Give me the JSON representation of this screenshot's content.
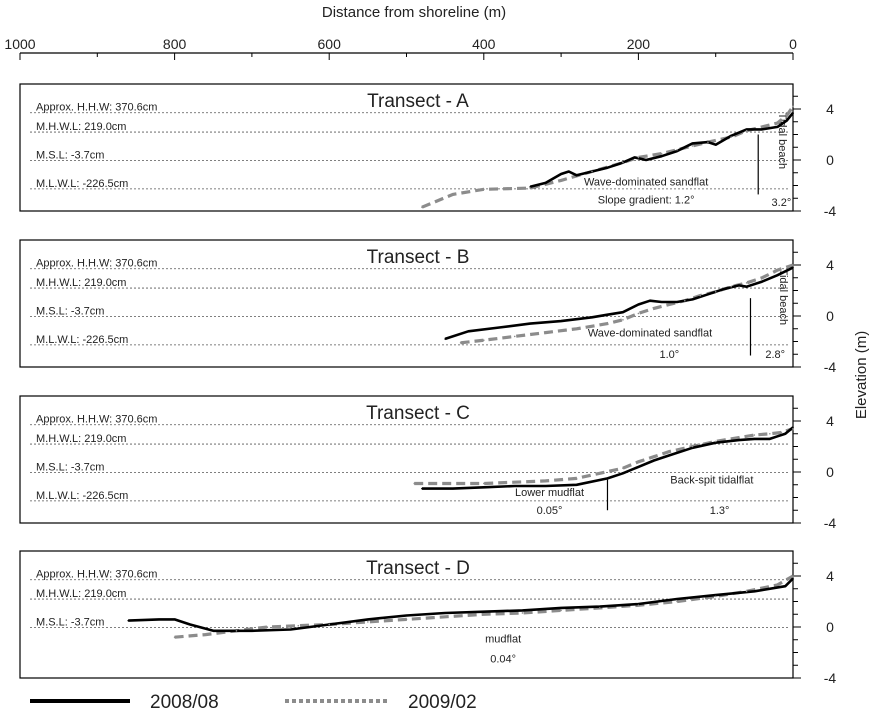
{
  "chart_data": {
    "type": "line",
    "xlabel": "Distance from shoreline (m)",
    "ylabel": "Elevation (m)",
    "x_ticks": [
      1000,
      800,
      600,
      400,
      200,
      0
    ],
    "x_range": [
      1000,
      0
    ],
    "y_range": [
      -4,
      4
    ],
    "y_ticks": [
      4,
      0,
      -4
    ],
    "series_names": [
      "2008/08",
      "2009/02"
    ],
    "colors": {
      "s2008": "#000000",
      "s2009": "#8c8c8c",
      "ref": "#555555"
    },
    "panels": [
      {
        "title": "Transect - A",
        "ref_lines": [
          {
            "label": "Approx. H.H.W: 370.6cm",
            "y": 3.706
          },
          {
            "label": "M.H.W.L: 219.0cm",
            "y": 2.19
          },
          {
            "label": "M.S.L: -3.7cm",
            "y": -0.037
          },
          {
            "label": "M.L.W.L: -226.5cm",
            "y": -2.265
          }
        ],
        "annotations": [
          {
            "text": "Wave-dominated sandflat",
            "x": 190,
            "y": -2.0
          },
          {
            "text": "Slope gradient: 1.2°",
            "x": 190,
            "y": -3.4
          },
          {
            "text": "3.2°",
            "x": 15,
            "y": -3.6
          },
          {
            "text": "Tidal beach",
            "x": 18,
            "y": 1.5,
            "vertical": true
          }
        ],
        "divider": {
          "x": 45,
          "y_top": 2.0,
          "y_bottom": -2.7
        },
        "s2008": [
          [
            340,
            -2.1
          ],
          [
            320,
            -1.8
          ],
          [
            300,
            -1.1
          ],
          [
            290,
            -0.9
          ],
          [
            280,
            -1.2
          ],
          [
            260,
            -0.9
          ],
          [
            240,
            -0.6
          ],
          [
            220,
            -0.2
          ],
          [
            205,
            0.2
          ],
          [
            190,
            0.0
          ],
          [
            170,
            0.3
          ],
          [
            150,
            0.7
          ],
          [
            130,
            1.3
          ],
          [
            110,
            1.4
          ],
          [
            100,
            1.2
          ],
          [
            80,
            1.9
          ],
          [
            60,
            2.4
          ],
          [
            40,
            2.4
          ],
          [
            20,
            2.6
          ],
          [
            8,
            3.1
          ],
          [
            0,
            3.7
          ]
        ],
        "s2009": [
          [
            480,
            -3.7
          ],
          [
            440,
            -2.7
          ],
          [
            400,
            -2.3
          ],
          [
            340,
            -2.2
          ],
          [
            300,
            -1.6
          ],
          [
            260,
            -0.9
          ],
          [
            220,
            -0.2
          ],
          [
            200,
            0.2
          ],
          [
            170,
            0.5
          ],
          [
            150,
            0.8
          ],
          [
            130,
            1.1
          ],
          [
            110,
            1.4
          ],
          [
            80,
            1.8
          ],
          [
            60,
            2.3
          ],
          [
            40,
            2.6
          ],
          [
            20,
            2.9
          ],
          [
            8,
            3.5
          ],
          [
            0,
            4.2
          ]
        ]
      },
      {
        "title": "Transect - B",
        "ref_lines": [
          {
            "label": "Approx. H.H.W: 370.6cm",
            "y": 3.706
          },
          {
            "label": "M.H.W.L: 219.0cm",
            "y": 2.19
          },
          {
            "label": "M.S.L: -3.7cm",
            "y": -0.037
          },
          {
            "label": "M.L.W.L: -226.5cm",
            "y": -2.265
          }
        ],
        "annotations": [
          {
            "text": "Wave-dominated sandflat",
            "x": 185,
            "y": -1.6
          },
          {
            "text": "1.0°",
            "x": 160,
            "y": -3.3
          },
          {
            "text": "2.8°",
            "x": 23,
            "y": -3.3
          },
          {
            "text": "Tidal beach",
            "x": 17,
            "y": 1.5,
            "vertical": true
          }
        ],
        "divider": {
          "x": 55,
          "y_top": 1.4,
          "y_bottom": -3.1
        },
        "s2008": [
          [
            450,
            -1.8
          ],
          [
            420,
            -1.2
          ],
          [
            380,
            -0.9
          ],
          [
            340,
            -0.6
          ],
          [
            300,
            -0.4
          ],
          [
            260,
            -0.1
          ],
          [
            240,
            0.1
          ],
          [
            220,
            0.3
          ],
          [
            200,
            0.9
          ],
          [
            185,
            1.2
          ],
          [
            170,
            1.1
          ],
          [
            150,
            1.1
          ],
          [
            130,
            1.3
          ],
          [
            110,
            1.7
          ],
          [
            90,
            2.1
          ],
          [
            70,
            2.4
          ],
          [
            60,
            2.3
          ],
          [
            40,
            2.7
          ],
          [
            20,
            3.2
          ],
          [
            0,
            3.8
          ]
        ],
        "s2009": [
          [
            430,
            -2.1
          ],
          [
            400,
            -1.9
          ],
          [
            360,
            -1.6
          ],
          [
            320,
            -1.3
          ],
          [
            280,
            -1.0
          ],
          [
            240,
            -0.6
          ],
          [
            220,
            -0.3
          ],
          [
            200,
            0.2
          ],
          [
            180,
            0.6
          ],
          [
            160,
            0.9
          ],
          [
            140,
            1.2
          ],
          [
            120,
            1.6
          ],
          [
            100,
            1.9
          ],
          [
            80,
            2.3
          ],
          [
            60,
            2.6
          ],
          [
            40,
            3.0
          ],
          [
            20,
            3.6
          ],
          [
            0,
            4.0
          ]
        ]
      },
      {
        "title": "Transect - C",
        "ref_lines": [
          {
            "label": "Approx. H.H.W: 370.6cm",
            "y": 3.706
          },
          {
            "label": "M.H.W.L: 219.0cm",
            "y": 2.19
          },
          {
            "label": "M.S.L: -3.7cm",
            "y": -0.037
          },
          {
            "label": "M.L.W.L: -226.5cm",
            "y": -2.265
          }
        ],
        "annotations": [
          {
            "text": "Lower mudflat",
            "x": 315,
            "y": -1.9
          },
          {
            "text": "0.05°",
            "x": 315,
            "y": -3.3
          },
          {
            "text": "Back-spit tidalflat",
            "x": 105,
            "y": -0.9
          },
          {
            "text": "1.3°",
            "x": 95,
            "y": -3.3
          }
        ],
        "divider": {
          "x": 240,
          "y_top": -0.6,
          "y_bottom": -3.0
        },
        "s2008": [
          [
            480,
            -1.3
          ],
          [
            440,
            -1.3
          ],
          [
            400,
            -1.2
          ],
          [
            360,
            -1.1
          ],
          [
            320,
            -1.1
          ],
          [
            280,
            -1.0
          ],
          [
            240,
            -0.5
          ],
          [
            220,
            -0.1
          ],
          [
            200,
            0.4
          ],
          [
            180,
            0.9
          ],
          [
            160,
            1.3
          ],
          [
            130,
            1.9
          ],
          [
            100,
            2.3
          ],
          [
            70,
            2.5
          ],
          [
            50,
            2.6
          ],
          [
            30,
            2.6
          ],
          [
            20,
            2.8
          ],
          [
            10,
            3.0
          ],
          [
            0,
            3.5
          ]
        ],
        "s2009": [
          [
            490,
            -0.9
          ],
          [
            450,
            -0.9
          ],
          [
            400,
            -0.9
          ],
          [
            360,
            -0.8
          ],
          [
            320,
            -0.7
          ],
          [
            280,
            -0.5
          ],
          [
            250,
            -0.1
          ],
          [
            220,
            0.3
          ],
          [
            200,
            0.8
          ],
          [
            180,
            1.2
          ],
          [
            160,
            1.6
          ],
          [
            130,
            2.0
          ],
          [
            100,
            2.4
          ],
          [
            70,
            2.7
          ],
          [
            50,
            2.9
          ],
          [
            30,
            3.0
          ],
          [
            15,
            3.1
          ],
          [
            0,
            3.4
          ]
        ]
      },
      {
        "title": "Transect - D",
        "ref_lines": [
          {
            "label": "Approx. H.H.W: 370.6cm",
            "y": 3.706
          },
          {
            "label": "M.H.W.L: 219.0cm",
            "y": 2.19
          },
          {
            "label": "M.S.L: -3.7cm",
            "y": -0.037
          }
        ],
        "annotations": [
          {
            "text": "mudflat",
            "x": 375,
            "y": -1.2
          },
          {
            "text": "0.04°",
            "x": 375,
            "y": -2.8
          }
        ],
        "divider": null,
        "s2008": [
          [
            860,
            0.5
          ],
          [
            820,
            0.6
          ],
          [
            800,
            0.6
          ],
          [
            780,
            0.2
          ],
          [
            750,
            -0.3
          ],
          [
            700,
            -0.3
          ],
          [
            650,
            -0.2
          ],
          [
            600,
            0.2
          ],
          [
            550,
            0.6
          ],
          [
            500,
            0.9
          ],
          [
            450,
            1.1
          ],
          [
            400,
            1.2
          ],
          [
            350,
            1.3
          ],
          [
            300,
            1.5
          ],
          [
            250,
            1.6
          ],
          [
            200,
            1.8
          ],
          [
            150,
            2.2
          ],
          [
            100,
            2.5
          ],
          [
            50,
            2.8
          ],
          [
            10,
            3.2
          ],
          [
            0,
            3.8
          ]
        ],
        "s2009": [
          [
            800,
            -0.8
          ],
          [
            760,
            -0.6
          ],
          [
            720,
            -0.3
          ],
          [
            680,
            0.0
          ],
          [
            640,
            0.1
          ],
          [
            600,
            0.2
          ],
          [
            550,
            0.4
          ],
          [
            500,
            0.6
          ],
          [
            450,
            0.8
          ],
          [
            400,
            1.0
          ],
          [
            350,
            1.1
          ],
          [
            300,
            1.3
          ],
          [
            250,
            1.5
          ],
          [
            200,
            1.7
          ],
          [
            150,
            2.0
          ],
          [
            100,
            2.4
          ],
          [
            60,
            2.8
          ],
          [
            20,
            3.3
          ],
          [
            0,
            4.0
          ]
        ]
      }
    ]
  }
}
